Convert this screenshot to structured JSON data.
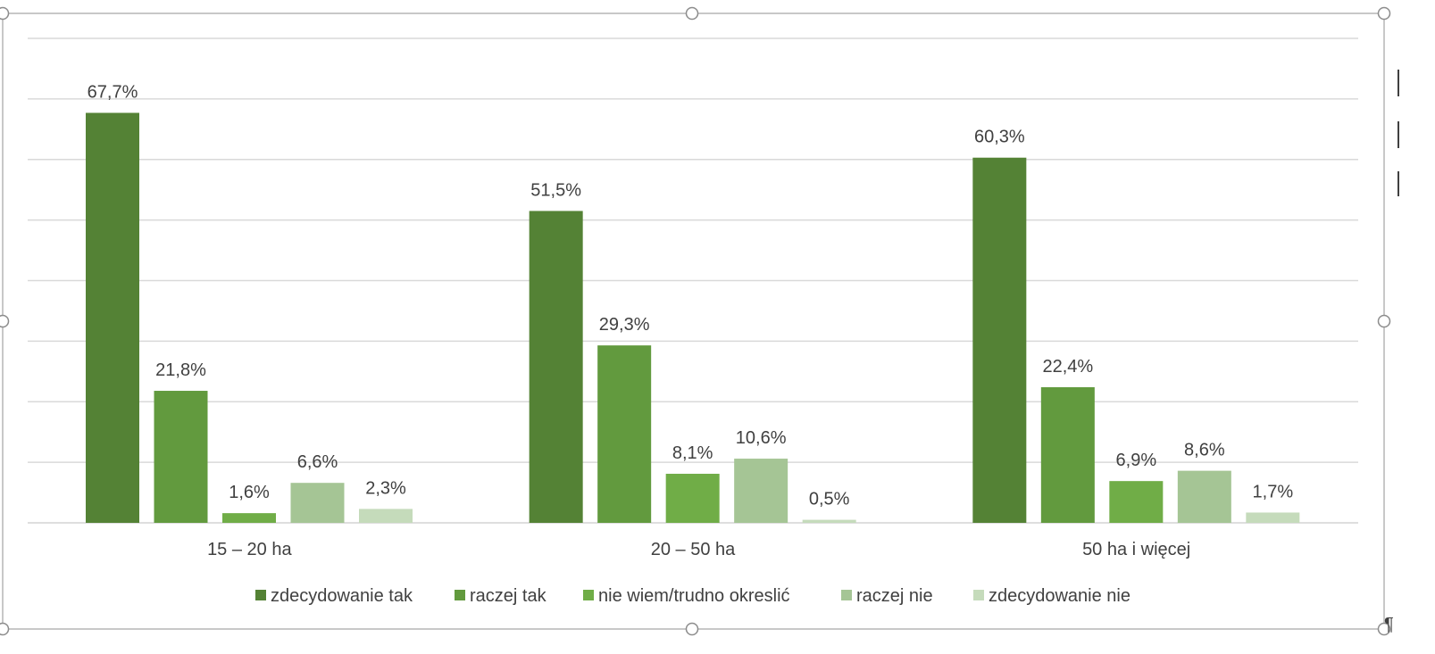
{
  "chart_data": {
    "type": "bar",
    "categories": [
      "15 – 20 ha",
      "20 – 50 ha",
      "50 ha i więcej"
    ],
    "series": [
      {
        "name": "zdecydowanie tak",
        "color": "#548235",
        "values": [
          67.7,
          51.5,
          60.3
        ],
        "labels": [
          "67,7%",
          "51,5%",
          "60,3%"
        ]
      },
      {
        "name": "raczej tak",
        "color": "#629A3E",
        "values": [
          21.8,
          29.3,
          22.4
        ],
        "labels": [
          "21,8%",
          "29,3%",
          "22,4%"
        ]
      },
      {
        "name": "nie wiem/trudno okreslić",
        "color": "#70AD47",
        "values": [
          1.6,
          8.1,
          6.9
        ],
        "labels": [
          "1,6%",
          "8,1%",
          "6,9%"
        ]
      },
      {
        "name": "raczej nie",
        "color": "#A5C595",
        "values": [
          6.6,
          10.6,
          8.6
        ],
        "labels": [
          "6,6%",
          "10,6%",
          "8,6%"
        ]
      },
      {
        "name": "zdecydowanie nie",
        "color": "#C5DBBB",
        "values": [
          2.3,
          0.5,
          1.7
        ],
        "labels": [
          "2,3%",
          "0,5%",
          "1,7%"
        ]
      }
    ],
    "ylim": [
      0,
      80
    ],
    "grid": true,
    "legend_position": "bottom",
    "title": "",
    "xlabel": "",
    "ylabel": ""
  },
  "pilcrow": "¶"
}
